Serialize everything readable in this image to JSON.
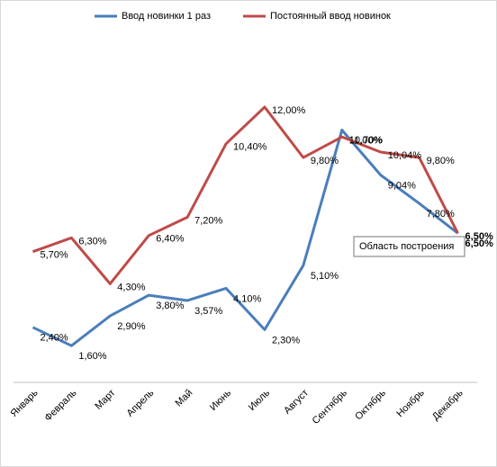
{
  "chart_data": {
    "type": "line",
    "categories": [
      "Январь",
      "Февраль",
      "Март",
      "Апрель",
      "Май",
      "Июнь",
      "Июль",
      "Август",
      "Сентябрь",
      "Октябрь",
      "Ноябрь",
      "Декабрь"
    ],
    "series": [
      {
        "name": "Ввод новинки 1 раз",
        "color": "#4a7ebb",
        "values": [
          2.4,
          1.6,
          2.9,
          3.8,
          3.57,
          4.1,
          2.3,
          5.1,
          11.0,
          9.04,
          7.8,
          6.5
        ],
        "value_labels": [
          "2,40%",
          "1,60%",
          "2,90%",
          "3,80%",
          "3,57%",
          "4,10%",
          "2,30%",
          "5,10%",
          "11,00%",
          "9,04%",
          "7,80%",
          "6,50%"
        ]
      },
      {
        "name": "Постоянный ввод новинок",
        "color": "#be4b48",
        "values": [
          5.7,
          6.3,
          4.3,
          6.4,
          7.2,
          10.4,
          12.0,
          9.8,
          10.7,
          10.04,
          9.8,
          6.5
        ],
        "value_labels": [
          "5,70%",
          "6,30%",
          "4,30%",
          "6,40%",
          "7,20%",
          "10,40%",
          "12,00%",
          "9,80%",
          "10,70%",
          "10,04%",
          "9,80%",
          "6,50%"
        ]
      }
    ],
    "ylim": [
      0,
      16
    ],
    "legend": "top",
    "tooltip": "Область построения"
  }
}
